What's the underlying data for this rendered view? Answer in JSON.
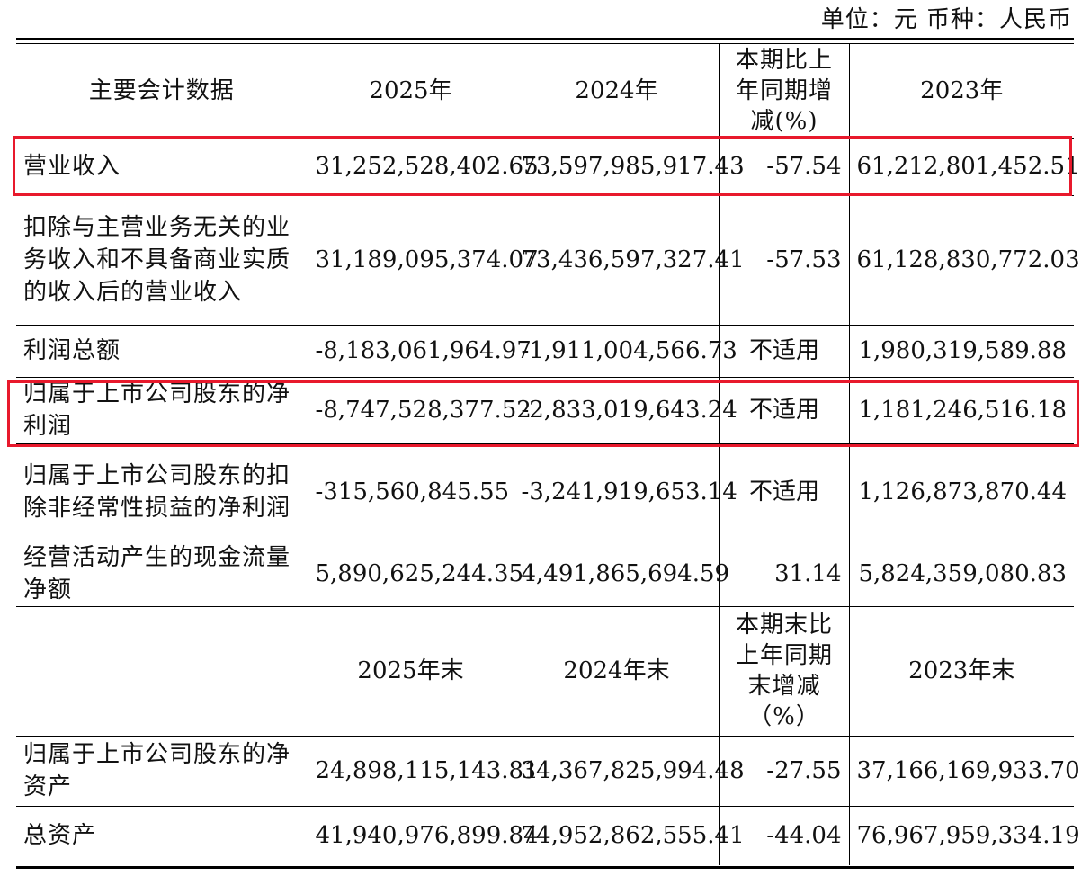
{
  "unit_line": "单位：元  币种：人民币",
  "highlight_color": "#e8192c",
  "header1": {
    "col0": "主要会计数据",
    "col1": "2025年",
    "col2": "2024年",
    "col3": "本期比上年同期增减(%)",
    "col4": "2023年"
  },
  "rows1": [
    {
      "label": "营业收入",
      "v2025": "31,252,528,402.65",
      "v2024": "73,597,985,917.43",
      "change": "-57.54",
      "v2023": "61,212,801,452.51"
    },
    {
      "label": "扣除与主营业务无关的业务收入和不具备商业实质的收入后的营业收入",
      "v2025": "31,189,095,374.07",
      "v2024": "73,436,597,327.41",
      "change": "-57.53",
      "v2023": "61,128,830,772.03"
    },
    {
      "label": "利润总额",
      "v2025": "-8,183,061,964.97",
      "v2024": "-1,911,004,566.73",
      "change": "不适用",
      "v2023": "1,980,319,589.88"
    },
    {
      "label": "归属于上市公司股东的净利润",
      "v2025": "-8,747,528,377.52",
      "v2024": "-2,833,019,643.24",
      "change": "不适用",
      "v2023": "1,181,246,516.18"
    },
    {
      "label": "归属于上市公司股东的扣除非经常性损益的净利润",
      "v2025": "-315,560,845.55",
      "v2024": "-3,241,919,653.14",
      "change": "不适用",
      "v2023": "1,126,873,870.44"
    },
    {
      "label": "经营活动产生的现金流量净额",
      "v2025": "5,890,625,244.35",
      "v2024": "4,491,865,694.59",
      "change": "31.14",
      "v2023": "5,824,359,080.83"
    }
  ],
  "header2": {
    "col0": "",
    "col1": "2025年末",
    "col2": "2024年末",
    "col3": "本期末比上年同期末增减（%）",
    "col4": "2023年末"
  },
  "rows2": [
    {
      "label": "归属于上市公司股东的净资产",
      "v2025": "24,898,115,143.81",
      "v2024": "34,367,825,994.48",
      "change": "-27.55",
      "v2023": "37,166,169,933.70"
    },
    {
      "label": "总资产",
      "v2025": "41,940,976,899.84",
      "v2024": "74,952,862,555.41",
      "change": "-44.04",
      "v2023": "76,967,959,334.19"
    }
  ]
}
